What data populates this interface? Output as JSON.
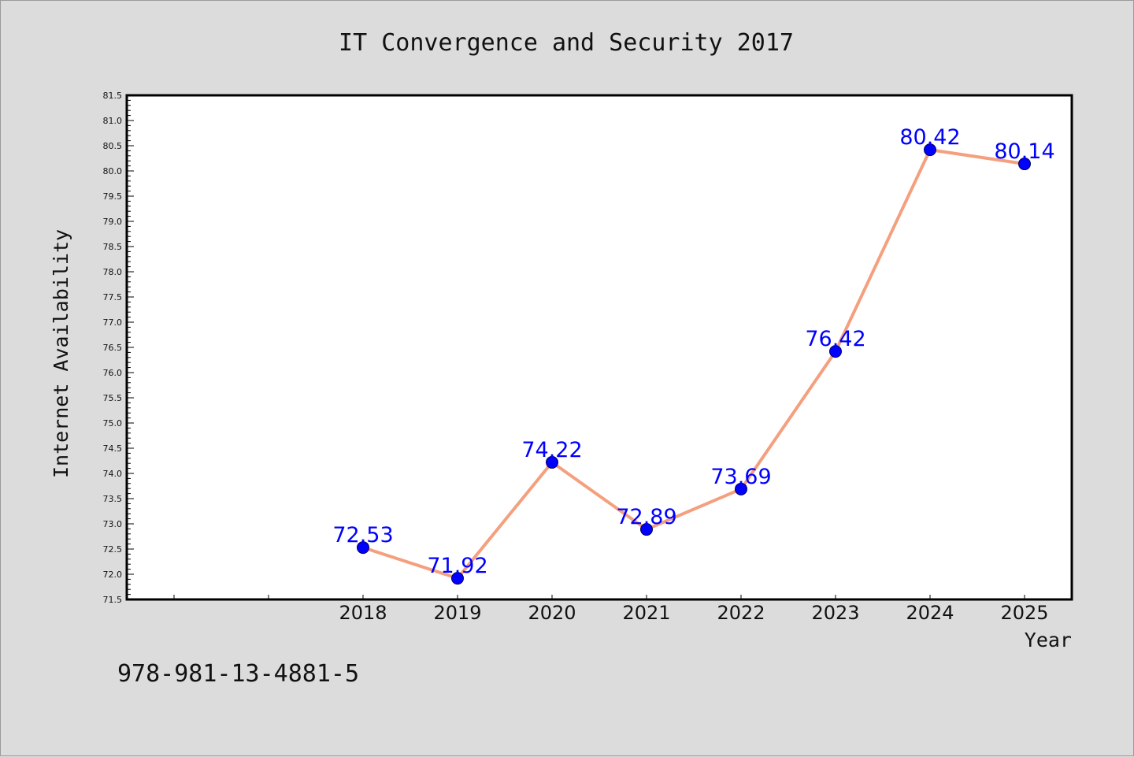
{
  "chart_data": {
    "type": "line",
    "title": "IT Convergence and Security 2017",
    "xlabel": "Year",
    "ylabel": "Internet Availability",
    "categories": [
      "2018",
      "2019",
      "2020",
      "2021",
      "2022",
      "2023",
      "2024",
      "2025"
    ],
    "series": [
      {
        "values": [
          72.53,
          71.92,
          74.22,
          72.89,
          73.69,
          76.42,
          80.42,
          80.14
        ],
        "labels": [
          "72.53",
          "71.92",
          "74.22",
          "72.89",
          "73.69",
          "76.42",
          "80.42",
          "80.14"
        ]
      }
    ],
    "ylim": [
      71.5,
      81.5
    ],
    "y_ticks": [
      "71.5",
      "72.0",
      "72.5",
      "73.0",
      "73.5",
      "74.0",
      "74.5",
      "75.0",
      "75.5",
      "76.0",
      "76.5",
      "77.0",
      "77.5",
      "78.0",
      "78.5",
      "79.0",
      "79.5",
      "80.0",
      "80.5",
      "81.0",
      "81.5"
    ],
    "grid": false,
    "line_color": "#f4a07f",
    "marker_color": "#0000ff",
    "label_color": "#0000ff"
  },
  "footer": {
    "isbn": "978-981-13-4881-5"
  }
}
